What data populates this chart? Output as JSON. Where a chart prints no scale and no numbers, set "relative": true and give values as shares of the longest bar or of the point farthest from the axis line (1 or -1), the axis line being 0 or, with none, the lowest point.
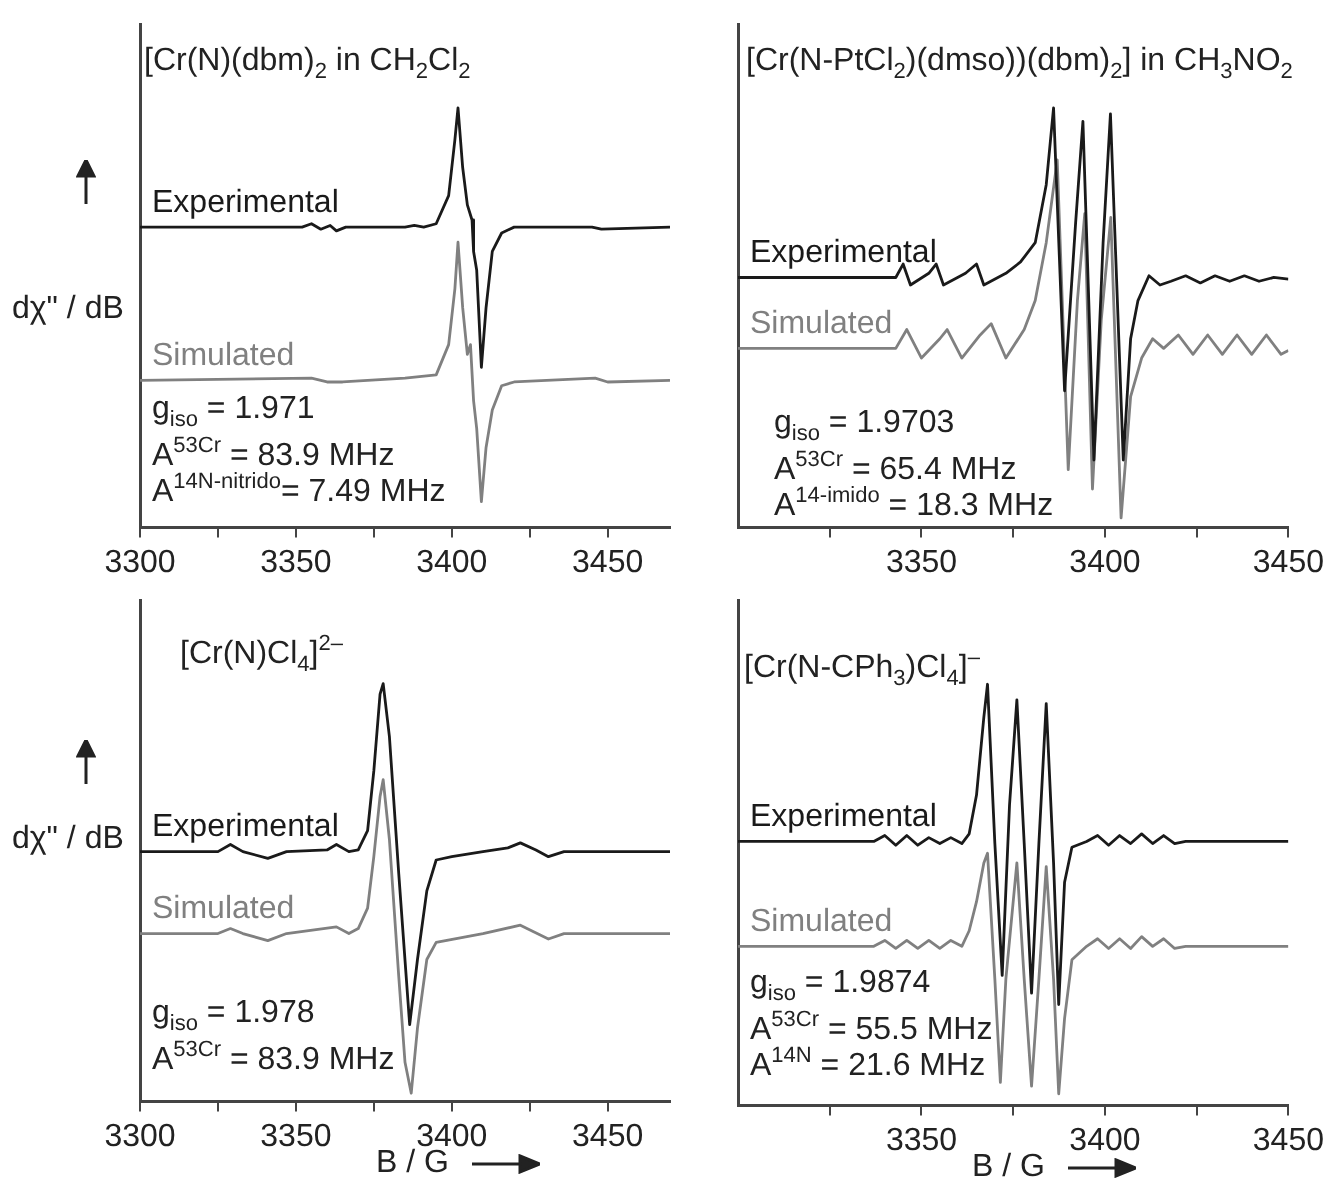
{
  "chart_data": [
    {
      "type": "line",
      "title": "[Cr(N)(dbm)$_{2}$ in CH$_{2}$Cl$_{2}$",
      "ylabel": "dχ\" / dB",
      "relative": true,
      "marker": "none",
      "line_style": "solid",
      "xlim": [
        3300,
        3470
      ],
      "xticks": [
        3300,
        {
          "value": 3325,
          "label": null
        },
        3350,
        {
          "value": 3375,
          "label": null
        },
        3400,
        {
          "value": 3425,
          "label": null
        },
        3450
      ],
      "annotations": [
        "g$_{iso}$ = 1.971",
        "A$^{53Cr}$ = 83.9 MHz",
        "A$^{14N-nitrido}$= 7.49 MHz"
      ],
      "series": [
        {
          "name": "Experimental",
          "color": "#1a1a1a",
          "x": [
            3300,
            3352,
            3355,
            3358,
            3361,
            3363,
            3366,
            3385,
            3388,
            3391,
            3395,
            3399,
            3401,
            3402,
            3403.5,
            3405,
            3406.5,
            3407,
            3408,
            3409.5,
            3411,
            3413,
            3416,
            3420,
            3445,
            3448,
            3470
          ],
          "values": [
            0.716,
            0.716,
            0.724,
            0.711,
            0.72,
            0.707,
            0.716,
            0.716,
            0.72,
            0.716,
            0.724,
            0.791,
            0.924,
            1,
            0.858,
            0.769,
            0.733,
            0.658,
            0.613,
            0.382,
            0.524,
            0.658,
            0.702,
            0.716,
            0.716,
            0.711,
            0.716
          ]
        },
        {
          "name": "Simulated",
          "color": "#808080",
          "x": [
            3300,
            3355,
            3360,
            3365,
            3385,
            3395,
            3399,
            3401,
            3402,
            3403.5,
            3405,
            3406,
            3407,
            3408,
            3409.5,
            3411,
            3413,
            3416,
            3420,
            3446,
            3450,
            3470
          ],
          "values": [
            0.351,
            0.356,
            0.347,
            0.347,
            0.356,
            0.364,
            0.436,
            0.569,
            0.68,
            0.524,
            0.413,
            0.436,
            0.302,
            0.236,
            0.062,
            0.191,
            0.28,
            0.338,
            0.347,
            0.356,
            0.347,
            0.351
          ]
        }
      ]
    },
    {
      "type": "line",
      "title": "[Cr(N-PtCl$_{2}$)(dmso))(dbm)$_{2}$] in CH$_{3}$NO$_{2}$",
      "relative": true,
      "marker": "none",
      "line_style": "solid",
      "xlim": [
        3300,
        3450
      ],
      "xticks": [
        {
          "value": 3325,
          "label": null
        },
        3350,
        {
          "value": 3375,
          "label": null
        },
        3400,
        {
          "value": 3425,
          "label": null
        },
        3450
      ],
      "annotations": [
        "g$_{iso}$ = 1.9703",
        "A$^{53Cr}$ = 65.4 MHz",
        "A$^{14-imido}$ = 18.3 MHz"
      ],
      "series": [
        {
          "name": "Experimental",
          "color": "#1a1a1a",
          "x": [
            3300,
            3343,
            3345,
            3347,
            3352,
            3354,
            3356,
            3362,
            3365,
            3367,
            3373,
            3377,
            3381,
            3384,
            3386,
            3389,
            3392,
            3394,
            3397,
            3399.5,
            3401.5,
            3405,
            3407,
            3409,
            3412,
            3415,
            3418,
            3422,
            3426,
            3430,
            3434,
            3438,
            3442,
            3446,
            3450
          ],
          "values": [
            0.596,
            0.596,
            0.628,
            0.578,
            0.606,
            0.628,
            0.578,
            0.606,
            0.628,
            0.578,
            0.606,
            0.633,
            0.679,
            0.817,
            1,
            0.326,
            0.725,
            0.968,
            0.161,
            0.679,
            0.986,
            0.161,
            0.45,
            0.541,
            0.6,
            0.578,
            0.587,
            0.6,
            0.583,
            0.6,
            0.587,
            0.6,
            0.587,
            0.596,
            0.592
          ]
        },
        {
          "name": "Simulated",
          "color": "#808080",
          "x": [
            3300,
            3343,
            3346,
            3350,
            3355,
            3357,
            3361,
            3366,
            3369,
            3373,
            3378,
            3381,
            3384,
            3387,
            3390,
            3392.5,
            3394.5,
            3396.6,
            3399,
            3401.6,
            3404.4,
            3407,
            3410,
            3413,
            3416,
            3420,
            3424,
            3428,
            3432,
            3436,
            3440,
            3444,
            3448,
            3450
          ],
          "values": [
            0.427,
            0.427,
            0.472,
            0.404,
            0.45,
            0.472,
            0.404,
            0.459,
            0.486,
            0.404,
            0.472,
            0.541,
            0.679,
            0.876,
            0.138,
            0.541,
            0.748,
            0.092,
            0.495,
            0.739,
            0.023,
            0.312,
            0.404,
            0.45,
            0.427,
            0.459,
            0.413,
            0.459,
            0.413,
            0.459,
            0.413,
            0.459,
            0.413,
            0.422
          ]
        }
      ]
    },
    {
      "type": "line",
      "title": "[Cr(N)Cl$_{4}$]$^{2–}$",
      "ylabel": "dχ\" / dB",
      "xlabel": "B / G",
      "relative": true,
      "marker": "none",
      "line_style": "solid",
      "xlim": [
        3300,
        3470
      ],
      "xticks": [
        3300,
        {
          "value": 3325,
          "label": null
        },
        3350,
        {
          "value": 3375,
          "label": null
        },
        3400,
        {
          "value": 3425,
          "label": null
        },
        3450
      ],
      "annotations": [
        "g$_{iso}$ = 1.978",
        "A$^{53Cr}$ = 83.9 MHz"
      ],
      "series": [
        {
          "name": "Experimental",
          "color": "#1a1a1a",
          "x": [
            3300,
            3325,
            3329,
            3333,
            3341,
            3347,
            3360,
            3363,
            3367,
            3370,
            3373,
            3375,
            3377,
            3378,
            3380,
            3383,
            3386.5,
            3389,
            3392,
            3395,
            3400,
            3410,
            3418,
            3422,
            3427,
            3431,
            3436,
            3470
          ],
          "values": [
            0.598,
            0.598,
            0.615,
            0.598,
            0.582,
            0.598,
            0.602,
            0.615,
            0.598,
            0.602,
            0.648,
            0.791,
            0.975,
            1,
            0.873,
            0.545,
            0.184,
            0.34,
            0.504,
            0.578,
            0.586,
            0.598,
            0.607,
            0.619,
            0.602,
            0.586,
            0.598,
            0.598
          ]
        },
        {
          "name": "Simulated",
          "color": "#808080",
          "x": [
            3300,
            3325,
            3329,
            3333,
            3341,
            3347,
            3363,
            3367,
            3370,
            3373,
            3375,
            3377,
            3378,
            3380,
            3383,
            3385,
            3387,
            3389,
            3392,
            3395,
            3410,
            3422,
            3431,
            3436,
            3470
          ],
          "values": [
            0.402,
            0.402,
            0.414,
            0.402,
            0.385,
            0.402,
            0.418,
            0.402,
            0.414,
            0.463,
            0.586,
            0.73,
            0.77,
            0.627,
            0.299,
            0.094,
            0.02,
            0.176,
            0.34,
            0.381,
            0.402,
            0.422,
            0.389,
            0.402,
            0.402
          ]
        }
      ]
    },
    {
      "type": "line",
      "title": "[Cr(N-CPh$_{3}$)Cl$_{4}$]$^{–}$",
      "xlabel": "B / G",
      "relative": true,
      "marker": "none",
      "line_style": "solid",
      "xlim": [
        3300,
        3450
      ],
      "xticks": [
        {
          "value": 3325,
          "label": null
        },
        3350,
        {
          "value": 3375,
          "label": null
        },
        3400,
        {
          "value": 3425,
          "label": null
        },
        3450
      ],
      "annotations": [
        "g$_{iso}$ = 1.9874",
        "A$^{53Cr}$ = 55.5 MHz",
        "A$^{14N}$ = 21.6 MHz"
      ],
      "series": [
        {
          "name": "Experimental",
          "color": "#1a1a1a",
          "x": [
            3300,
            3337,
            3340,
            3343,
            3346,
            3349,
            3352,
            3355,
            3358,
            3361,
            3363,
            3365,
            3367,
            3368,
            3370,
            3372,
            3374,
            3376,
            3378,
            3380,
            3382,
            3384,
            3386,
            3387.4,
            3389,
            3391,
            3395,
            3398,
            3401,
            3404,
            3407,
            3410,
            3413,
            3416,
            3419,
            3422,
            3450
          ],
          "values": [
            0.627,
            0.627,
            0.641,
            0.618,
            0.641,
            0.618,
            0.636,
            0.622,
            0.636,
            0.622,
            0.645,
            0.737,
            0.922,
            1,
            0.622,
            0.309,
            0.714,
            0.963,
            0.622,
            0.267,
            0.622,
            0.954,
            0.576,
            0.24,
            0.53,
            0.613,
            0.627,
            0.641,
            0.618,
            0.641,
            0.622,
            0.645,
            0.622,
            0.641,
            0.622,
            0.627,
            0.627
          ]
        },
        {
          "name": "Simulated",
          "color": "#808080",
          "x": [
            3300,
            3337,
            3340,
            3343,
            3346,
            3349,
            3352,
            3355,
            3358,
            3361,
            3363,
            3365,
            3367,
            3368,
            3370,
            3371.5,
            3373,
            3376,
            3378,
            3380,
            3382,
            3384,
            3386,
            3387.4,
            3389,
            3391,
            3395,
            3398,
            3401,
            3404,
            3407,
            3410,
            3413,
            3416,
            3419,
            3422,
            3450
          ],
          "values": [
            0.378,
            0.378,
            0.392,
            0.373,
            0.392,
            0.373,
            0.392,
            0.373,
            0.392,
            0.378,
            0.415,
            0.484,
            0.576,
            0.599,
            0.3,
            0.055,
            0.3,
            0.576,
            0.3,
            0.046,
            0.3,
            0.567,
            0.3,
            0.028,
            0.207,
            0.346,
            0.378,
            0.396,
            0.373,
            0.396,
            0.373,
            0.401,
            0.378,
            0.396,
            0.373,
            0.378,
            0.378
          ]
        }
      ]
    }
  ]
}
